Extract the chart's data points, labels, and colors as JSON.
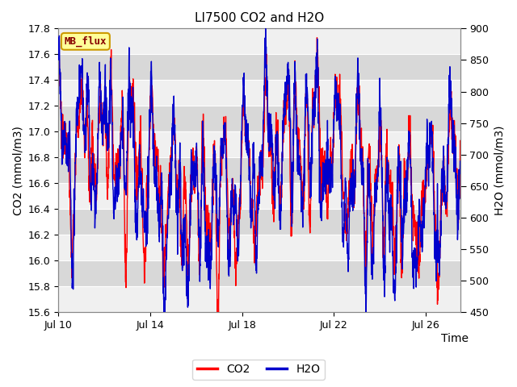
{
  "title": "LI7500 CO2 and H2O",
  "xlabel": "Time",
  "ylabel_left": "CO2 (mmol/m3)",
  "ylabel_right": "H2O (mmol/m3)",
  "xlim_days": [
    0,
    17.5
  ],
  "ylim_left": [
    15.6,
    17.8
  ],
  "ylim_right": [
    450,
    900
  ],
  "yticks_left": [
    15.6,
    15.8,
    16.0,
    16.2,
    16.4,
    16.6,
    16.8,
    17.0,
    17.2,
    17.4,
    17.6,
    17.8
  ],
  "yticks_right": [
    450,
    500,
    550,
    600,
    650,
    700,
    750,
    800,
    850,
    900
  ],
  "xtick_labels": [
    "Jul 10",
    "Jul 14",
    "Jul 18",
    "Jul 22",
    "Jul 26"
  ],
  "xtick_positions": [
    0,
    4,
    8,
    12,
    16
  ],
  "co2_color": "#ff0000",
  "h2o_color": "#0000cc",
  "plot_bg_color": "#e8e8e8",
  "band_color_light": "#f0f0f0",
  "band_color_dark": "#d8d8d8",
  "legend_entries": [
    "CO2",
    "H2O"
  ],
  "annotation_text": "MB_flux",
  "annotation_bg": "#ffff99",
  "annotation_border": "#cc9900",
  "annotation_text_color": "#880000",
  "linewidth": 1.0,
  "figsize": [
    6.4,
    4.8
  ],
  "dpi": 100
}
